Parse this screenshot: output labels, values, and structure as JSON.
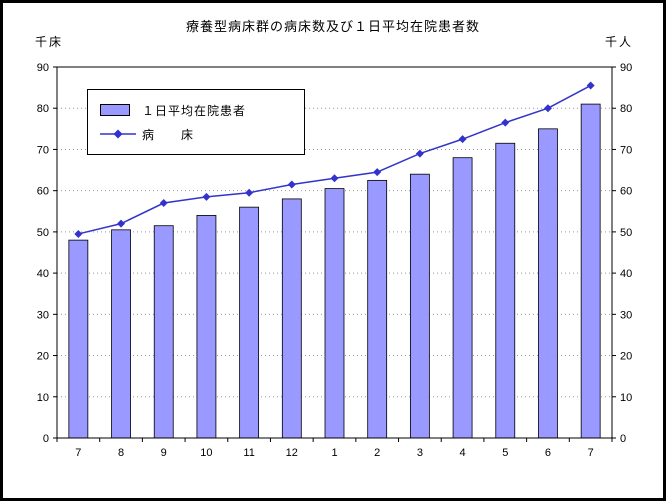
{
  "title": "療養型病床群の病床数及び１日平均在院患者数",
  "left_unit": "千床",
  "right_unit": "千人",
  "legend": {
    "bar_label": "１日平均在院患者",
    "line_label": "病　　床"
  },
  "chart_data": {
    "type": "bar+line",
    "title": "療養型病床群の病床数及び１日平均在院患者数",
    "categories": [
      "7",
      "8",
      "9",
      "10",
      "11",
      "12",
      "1",
      "2",
      "3",
      "4",
      "5",
      "6",
      "7"
    ],
    "series": [
      {
        "name": "１日平均在院患者",
        "type": "bar",
        "color": "#9999FF",
        "values": [
          48,
          50.5,
          51.5,
          54,
          56,
          58,
          60.5,
          62.5,
          64,
          68,
          71.5,
          75,
          81
        ]
      },
      {
        "name": "病床",
        "type": "line",
        "color": "#3333CC",
        "values": [
          49.5,
          52,
          57,
          58.5,
          59.5,
          61.5,
          63,
          64.5,
          69,
          72.5,
          76.5,
          80,
          85.5
        ]
      }
    ],
    "ylabel_left": "千床",
    "ylabel_right": "千人",
    "ylim": [
      0,
      90
    ],
    "ytick_step": 10,
    "grid": true,
    "legend_position": "top-left-inside"
  }
}
